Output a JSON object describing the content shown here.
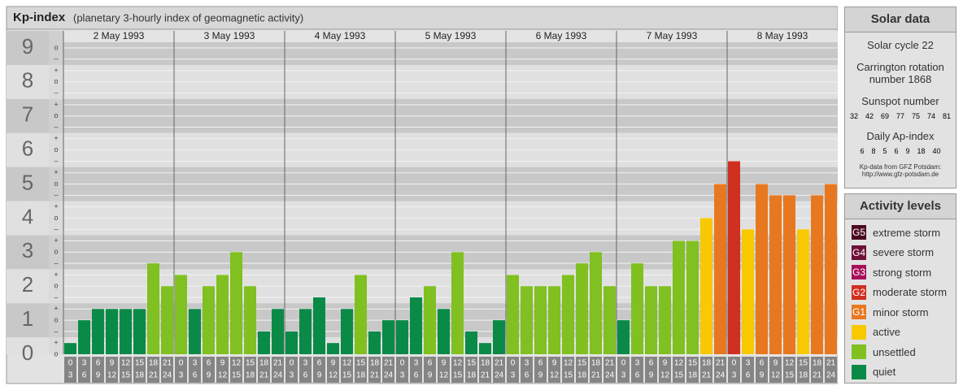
{
  "chart_data": {
    "type": "bar",
    "title": "Kp-index",
    "subtitle": "(planetary 3-hourly index of geomagnetic activity)",
    "days": [
      "2 May 1993",
      "3 May 1993",
      "4 May 1993",
      "5 May 1993",
      "6 May 1993",
      "7 May 1993",
      "8 May 1993"
    ],
    "time_bins": [
      0,
      3,
      6,
      9,
      12,
      15,
      18,
      21,
      24
    ],
    "values": [
      0.33,
      1,
      1.33,
      1.33,
      1.33,
      1.33,
      2.67,
      2,
      2.33,
      1.33,
      2,
      2.33,
      3,
      2,
      0.67,
      1.33,
      0.67,
      1.33,
      1.67,
      0.33,
      1.33,
      2.33,
      0.67,
      1,
      1,
      1.67,
      2,
      1.33,
      3,
      0.67,
      0.33,
      1,
      2.33,
      2,
      2,
      2,
      2.33,
      2.67,
      3,
      2,
      1,
      2.67,
      2,
      2,
      3.33,
      3.33,
      4,
      5,
      5.67,
      3.67,
      5,
      4.67,
      4.67,
      3.67,
      4.67,
      5
    ],
    "colors": [
      "#0a8a47",
      "#0a8a47",
      "#0a8a47",
      "#0a8a47",
      "#0a8a47",
      "#0a8a47",
      "#80c020",
      "#80c020",
      "#80c020",
      "#0a8a47",
      "#80c020",
      "#80c020",
      "#80c020",
      "#80c020",
      "#0a8a47",
      "#0a8a47",
      "#0a8a47",
      "#0a8a47",
      "#0a8a47",
      "#0a8a47",
      "#0a8a47",
      "#80c020",
      "#0a8a47",
      "#0a8a47",
      "#0a8a47",
      "#0a8a47",
      "#80c020",
      "#0a8a47",
      "#80c020",
      "#0a8a47",
      "#0a8a47",
      "#0a8a47",
      "#80c020",
      "#80c020",
      "#80c020",
      "#80c020",
      "#80c020",
      "#80c020",
      "#80c020",
      "#80c020",
      "#0a8a47",
      "#80c020",
      "#80c020",
      "#80c020",
      "#80c020",
      "#80c020",
      "#f8c800",
      "#e87820",
      "#d03020",
      "#f8c800",
      "#e87820",
      "#e87820",
      "#e87820",
      "#f8c800",
      "#e87820",
      "#e87820"
    ],
    "ylim": [
      0,
      9.5
    ],
    "yticks": [
      0,
      1,
      2,
      3,
      4,
      5,
      6,
      7,
      8,
      9
    ],
    "minor_yticks": [
      {
        "value": 0,
        "label": "o"
      },
      {
        "value": 0.33,
        "label": "+"
      },
      {
        "value": 0.67,
        "label": "–"
      },
      {
        "value": 1,
        "label": "o"
      },
      {
        "value": 1.33,
        "label": "+"
      },
      {
        "value": 1.67,
        "label": "–"
      },
      {
        "value": 2,
        "label": "o"
      },
      {
        "value": 2.33,
        "label": "+"
      },
      {
        "value": 2.67,
        "label": "–"
      },
      {
        "value": 3,
        "label": "o"
      },
      {
        "value": 3.33,
        "label": "+"
      },
      {
        "value": 3.67,
        "label": "–"
      },
      {
        "value": 4,
        "label": "o"
      },
      {
        "value": 4.33,
        "label": "+"
      },
      {
        "value": 4.67,
        "label": "–"
      },
      {
        "value": 5,
        "label": "o"
      },
      {
        "value": 5.33,
        "label": "+"
      },
      {
        "value": 5.67,
        "label": "–"
      },
      {
        "value": 6,
        "label": "o"
      },
      {
        "value": 6.33,
        "label": "+"
      },
      {
        "value": 6.67,
        "label": "–"
      },
      {
        "value": 7,
        "label": "o"
      },
      {
        "value": 7.33,
        "label": "+"
      },
      {
        "value": 7.67,
        "label": "–"
      },
      {
        "value": 8,
        "label": "o"
      },
      {
        "value": 8.33,
        "label": "+"
      },
      {
        "value": 8.67,
        "label": "–"
      },
      {
        "value": 9,
        "label": "o"
      }
    ],
    "grid": true
  },
  "solar_data": {
    "title": "Solar data",
    "cycle": "Solar cycle 22",
    "carrington": "Carrington rotation number 1868",
    "sunspot_title": "Sunspot number",
    "sunspot": [
      32,
      42,
      69,
      77,
      75,
      74,
      81
    ],
    "ap_title": "Daily Ap-index",
    "ap": [
      6,
      8,
      5,
      6,
      9,
      18,
      40
    ],
    "source": "Kp-data from GFZ Potsdam:",
    "url": "http://www.gfz-potsdam.de"
  },
  "activity_levels": {
    "title": "Activity levels",
    "items": [
      {
        "code": "G5",
        "label": "extreme storm",
        "color": "#4a0a1e"
      },
      {
        "code": "G4",
        "label": "severe storm",
        "color": "#6e1038"
      },
      {
        "code": "G3",
        "label": "strong storm",
        "color": "#a8105a"
      },
      {
        "code": "G2",
        "label": "moderate storm",
        "color": "#d03020"
      },
      {
        "code": "G1",
        "label": "minor storm",
        "color": "#e87820"
      },
      {
        "label": "active",
        "color": "#f8c800"
      },
      {
        "label": "unsettled",
        "color": "#80c020"
      },
      {
        "label": "quiet",
        "color": "#0a8a47"
      }
    ]
  }
}
